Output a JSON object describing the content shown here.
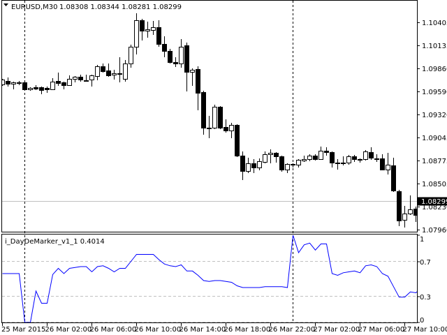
{
  "header": {
    "symbol_timeframe": "EURUSD,M30",
    "ohlc": "1.08308 1.08344 1.08281 1.08299",
    "menu_icon": "triangle-down-icon"
  },
  "indicator": {
    "label": "i_DayDeMarker_v1_1 0.4014"
  },
  "colors": {
    "bull_body": "#ffffff",
    "bear_body": "#000000",
    "indicator_line": "#0000ff",
    "bid_line": "#c0c0c0",
    "level_line": "#c0c0c0",
    "price_tag_bg": "#000000",
    "price_tag_text": "#ffffff"
  },
  "chart_data": [
    {
      "type": "candlestick",
      "symbol": "EURUSD",
      "timeframe": "M30",
      "ylim": [
        1.0796,
        1.10405
      ],
      "y_ticks": [
        "1.10405",
        "1.10135",
        "1.09860",
        "1.09590",
        "1.09320",
        "1.09045",
        "1.08775",
        "1.08505",
        "1.08230",
        "1.07960"
      ],
      "bid": "1.08299",
      "day_separators": [
        "26 Mar 00:00",
        "27 Mar 00:00"
      ],
      "x_ticks": [
        "25 Mar 2015",
        "26 Mar 02:00",
        "26 Mar 06:00",
        "26 Mar 10:00",
        "26 Mar 14:00",
        "26 Mar 18:00",
        "26 Mar 22:00",
        "27 Mar 02:00",
        "27 Mar 06:00",
        "27 Mar 10:00"
      ],
      "ohlc": [
        [
          1.09672,
          1.09738,
          1.09664,
          1.0973
        ],
        [
          1.09714,
          1.09755,
          1.09656,
          1.09681
        ],
        [
          1.09681,
          1.09705,
          1.09623,
          1.09697
        ],
        [
          1.09697,
          1.09714,
          1.09672,
          1.09697
        ],
        [
          1.09697,
          1.09714,
          1.09607,
          1.09615
        ],
        [
          1.09615,
          1.0964,
          1.09607,
          1.09631
        ],
        [
          1.0964,
          1.09664,
          1.09615,
          1.09623
        ],
        [
          1.0964,
          1.09648,
          1.09566,
          1.09607
        ],
        [
          1.09631,
          1.09648,
          1.09582,
          1.09615
        ],
        [
          1.09615,
          1.09747,
          1.09615,
          1.09705
        ],
        [
          1.09714,
          1.09812,
          1.09664,
          1.09689
        ],
        [
          1.09697,
          1.09705,
          1.09623,
          1.09664
        ],
        [
          1.09664,
          1.0978,
          1.09664,
          1.09738
        ],
        [
          1.09738,
          1.09771,
          1.09705,
          1.09763
        ],
        [
          1.09763,
          1.09788,
          1.09714,
          1.0973
        ],
        [
          1.09722,
          1.09788,
          1.09714,
          1.09722
        ],
        [
          1.0973,
          1.09788,
          1.09656,
          1.0978
        ],
        [
          1.09771,
          1.09903,
          1.0973,
          1.09886
        ],
        [
          1.09886,
          1.09919,
          1.09821,
          1.09829
        ],
        [
          1.09837,
          1.09919,
          1.09771,
          1.0978
        ],
        [
          1.09788,
          1.09845,
          1.09738,
          1.09804
        ],
        [
          1.09804,
          1.09994,
          1.09705,
          1.09804
        ],
        [
          1.09738,
          1.09961,
          1.09714,
          1.09919
        ],
        [
          1.09919,
          1.10142,
          1.09878,
          1.10117
        ],
        [
          1.10117,
          1.10512,
          1.10035,
          1.1043
        ],
        [
          1.1043,
          1.10446,
          1.10199,
          1.10306
        ],
        [
          1.10306,
          1.10413,
          1.10232,
          1.10323
        ],
        [
          1.10314,
          1.10421,
          1.10265,
          1.10347
        ],
        [
          1.10347,
          1.1043,
          1.10125,
          1.1015
        ],
        [
          1.1015,
          1.1024,
          1.10002,
          1.10068
        ],
        [
          1.10068,
          1.10092,
          1.09928,
          1.09936
        ],
        [
          1.09936,
          1.09994,
          1.09886,
          1.09919
        ],
        [
          1.09919,
          1.10207,
          1.09878,
          1.10117
        ],
        [
          1.10133,
          1.10166,
          1.09598,
          1.09821
        ],
        [
          1.09821,
          1.09862,
          1.09664,
          1.09845
        ],
        [
          1.09854,
          1.09886,
          1.09376,
          1.09574
        ],
        [
          1.09582,
          1.09598,
          1.09088,
          1.09162
        ],
        [
          1.09162,
          1.09302,
          1.09047,
          1.09162
        ],
        [
          1.09162,
          1.09434,
          1.09154,
          1.09409
        ],
        [
          1.09409,
          1.09417,
          1.09154,
          1.09162
        ],
        [
          1.09171,
          1.09261,
          1.09113,
          1.09129
        ],
        [
          1.09129,
          1.0922,
          1.09047,
          1.09195
        ],
        [
          1.09195,
          1.09203,
          1.08825,
          1.08833
        ],
        [
          1.08833,
          1.08882,
          1.08553,
          1.08652
        ],
        [
          1.08652,
          1.08808,
          1.08636,
          1.08743
        ],
        [
          1.08743,
          1.08792,
          1.08636,
          1.08693
        ],
        [
          1.08693,
          1.088,
          1.08668,
          1.08767
        ],
        [
          1.08759,
          1.08882,
          1.08751,
          1.0885
        ],
        [
          1.0885,
          1.08907,
          1.08751,
          1.08866
        ],
        [
          1.08866,
          1.08874,
          1.08759,
          1.08825
        ],
        [
          1.08825,
          1.08833,
          1.08652,
          1.08668
        ],
        [
          1.08668,
          1.08743,
          1.08636,
          1.08734
        ],
        [
          1.08734,
          1.08743,
          1.08701,
          1.08726
        ],
        [
          1.08726,
          1.08792,
          1.08701,
          1.08784
        ],
        [
          1.08776,
          1.08833,
          1.08767,
          1.08792
        ],
        [
          1.08792,
          1.0885,
          1.08776,
          1.08833
        ],
        [
          1.08833,
          1.0885,
          1.08784,
          1.08792
        ],
        [
          1.08792,
          1.0894,
          1.08792,
          1.08891
        ],
        [
          1.08891,
          1.08932,
          1.08841,
          1.08874
        ],
        [
          1.08874,
          1.08882,
          1.08701,
          1.08751
        ],
        [
          1.08751,
          1.08792,
          1.08677,
          1.08751
        ],
        [
          1.08751,
          1.08825,
          1.08726,
          1.08751
        ],
        [
          1.08751,
          1.08841,
          1.08734,
          1.08825
        ],
        [
          1.08825,
          1.08841,
          1.08767,
          1.08792
        ],
        [
          1.08792,
          1.088,
          1.08759,
          1.08792
        ],
        [
          1.08792,
          1.08899,
          1.08784,
          1.08882
        ],
        [
          1.08874,
          1.08932,
          1.08792,
          1.08808
        ],
        [
          1.088,
          1.0885,
          1.08767,
          1.088
        ],
        [
          1.088,
          1.0885,
          1.08668,
          1.08668
        ],
        [
          1.08668,
          1.08866,
          1.08619,
          1.08726
        ],
        [
          1.08718,
          1.08808,
          1.08413,
          1.08422
        ],
        [
          1.08413,
          1.0843,
          1.0801,
          1.08068
        ],
        [
          1.08076,
          1.08241,
          1.07994,
          1.0815
        ],
        [
          1.0815,
          1.08364,
          1.08142,
          1.08199
        ],
        [
          1.08208,
          1.08232,
          1.08059,
          1.08133
        ],
        [
          1.08308,
          1.08344,
          1.08281,
          1.08299
        ]
      ]
    },
    {
      "type": "line",
      "name": "i_DayDeMarker_v1_1",
      "ylim": [
        0,
        1
      ],
      "y_ticks": [
        "1",
        "0.7",
        "0.3",
        "0"
      ],
      "levels": [
        0.7,
        0.3,
        0
      ],
      "values": [
        0.56,
        0.56,
        0.56,
        0.56,
        0.0,
        0.0,
        0.36,
        0.22,
        0.22,
        0.55,
        0.62,
        0.56,
        0.62,
        0.63,
        0.64,
        0.64,
        0.58,
        0.64,
        0.65,
        0.62,
        0.58,
        0.62,
        0.62,
        0.7,
        0.78,
        0.78,
        0.78,
        0.78,
        0.72,
        0.67,
        0.65,
        0.64,
        0.66,
        0.59,
        0.59,
        0.54,
        0.48,
        0.47,
        0.48,
        0.48,
        0.47,
        0.46,
        0.42,
        0.4,
        0.4,
        0.4,
        0.4,
        0.41,
        0.41,
        0.41,
        0.41,
        0.4,
        1.0,
        0.8,
        0.89,
        0.91,
        0.83,
        0.9,
        0.9,
        0.56,
        0.54,
        0.57,
        0.58,
        0.59,
        0.57,
        0.65,
        0.66,
        0.64,
        0.56,
        0.53,
        0.41,
        0.29,
        0.29,
        0.35,
        0.34,
        0.4014
      ]
    }
  ]
}
